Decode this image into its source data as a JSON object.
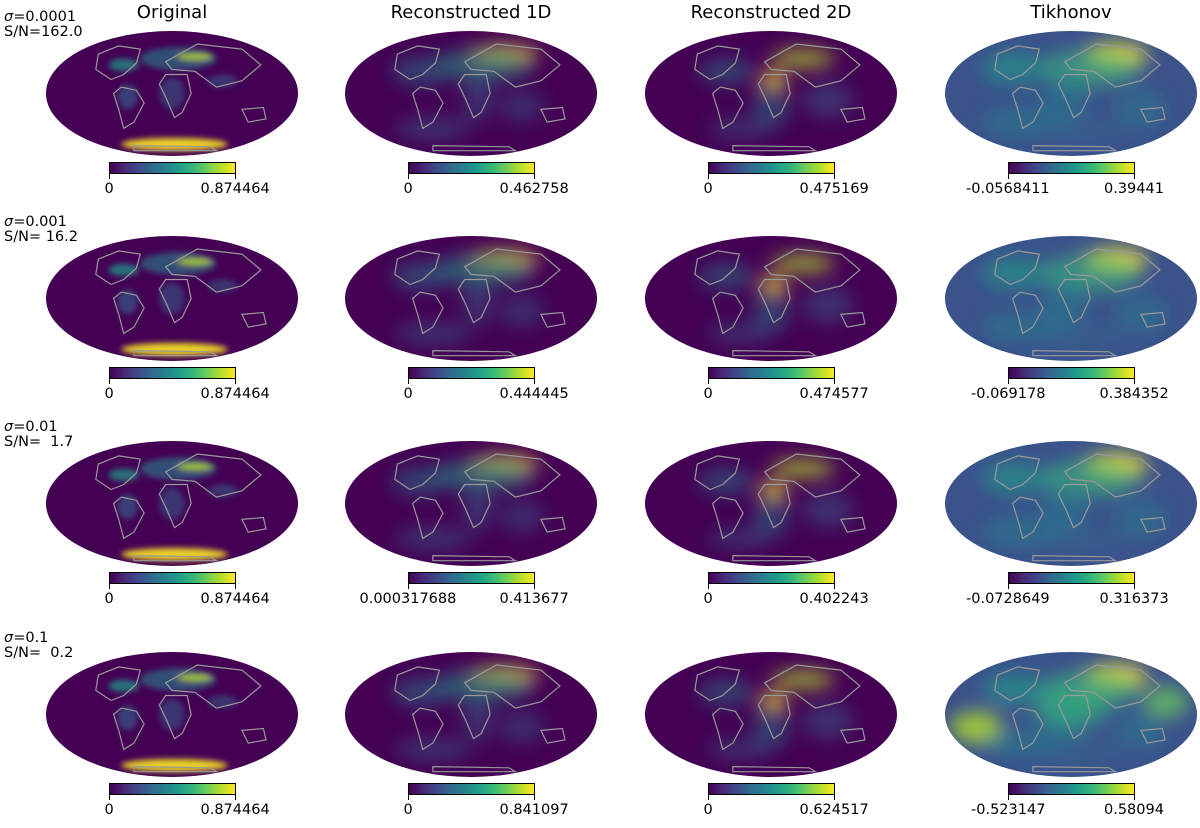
{
  "chart_data": {
    "type": "heatmap",
    "projection": "mollweide",
    "colormap": "viridis",
    "colormap_colors": [
      "#440154",
      "#482878",
      "#3e4a89",
      "#31688e",
      "#26828e",
      "#1f9e89",
      "#35b779",
      "#6ece58",
      "#b5de2b",
      "#fde725"
    ],
    "overlay_color": "#999999",
    "overlay": "coastlines",
    "columns": [
      "Original",
      "Reconstructed 1D",
      "Reconstructed 2D",
      "Tikhonov"
    ],
    "rows": [
      {
        "sigma": "0.0001",
        "sn": "162.0",
        "ranges": [
          [
            "0",
            "0.874464"
          ],
          [
            "0",
            "0.462758"
          ],
          [
            "0",
            "0.475169"
          ],
          [
            "-0.0568411",
            "0.39441"
          ]
        ]
      },
      {
        "sigma": "0.001",
        "sn": " 16.2",
        "ranges": [
          [
            "0",
            "0.874464"
          ],
          [
            "0",
            "0.444445"
          ],
          [
            "0",
            "0.474577"
          ],
          [
            "-0.069178",
            "0.384352"
          ]
        ]
      },
      {
        "sigma": "0.01",
        "sn": "  1.7",
        "ranges": [
          [
            "0",
            "0.874464"
          ],
          [
            "0.000317688",
            "0.413677"
          ],
          [
            "0",
            "0.402243"
          ],
          [
            "-0.0728649",
            "0.316373"
          ]
        ]
      },
      {
        "sigma": "0.1",
        "sn": "  0.2",
        "ranges": [
          [
            "0",
            "0.874464"
          ],
          [
            "0",
            "0.841097"
          ],
          [
            "0",
            "0.624517"
          ],
          [
            "-0.523147",
            "0.58094"
          ]
        ]
      }
    ]
  }
}
